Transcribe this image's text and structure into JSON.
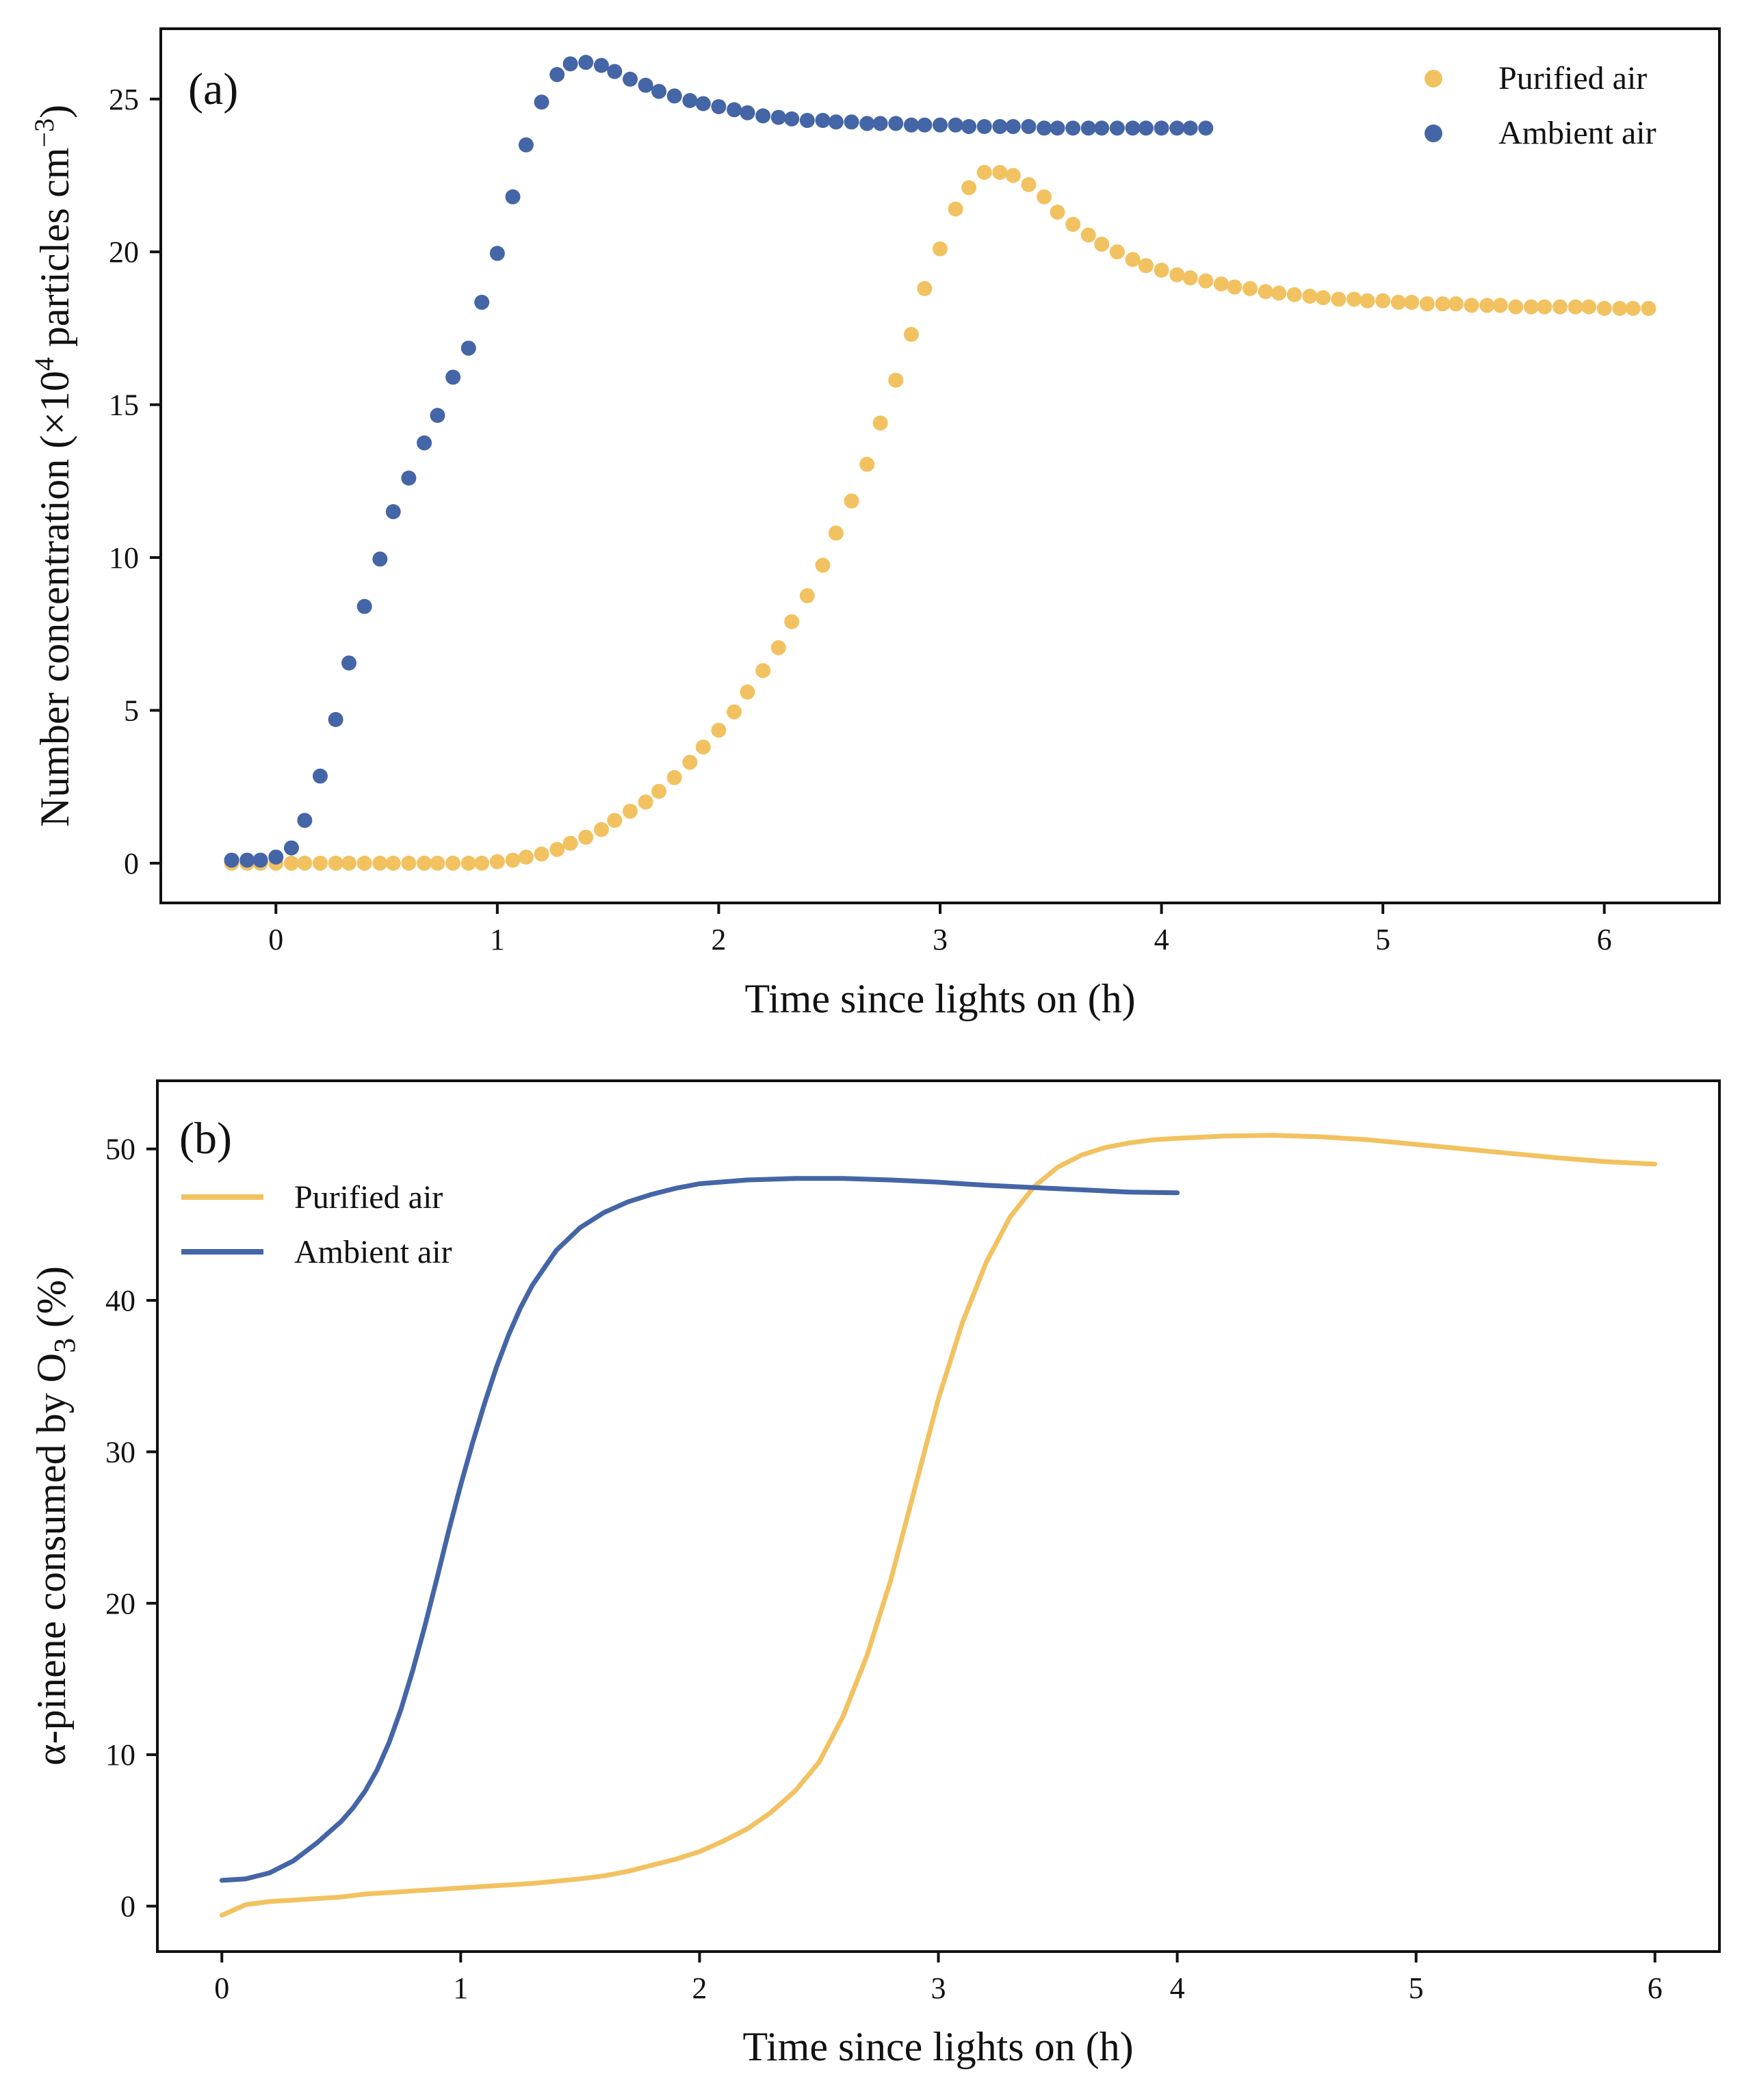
{
  "colors": {
    "purified": "#F2C261",
    "ambient": "#4465A6",
    "axis": "#111111"
  },
  "chart_data": [
    {
      "id": "a",
      "type": "scatter",
      "panel_label": "(a)",
      "xlabel": "Time since lights on (h)",
      "ylabel_parts": {
        "pre": "Number concentration (×10",
        "sup1": "4",
        "mid": " particles cm",
        "sup2": "−3",
        "post": ")"
      },
      "xlim": [
        -0.52,
        6.52
      ],
      "ylim": [
        -1.3,
        27.3
      ],
      "xticks": [
        0,
        1,
        2,
        3,
        4,
        5,
        6
      ],
      "xtick_labels": [
        "0",
        "1",
        "2",
        "3",
        "4",
        "5",
        "6"
      ],
      "yticks": [
        0,
        5,
        10,
        15,
        20,
        25
      ],
      "ytick_labels": [
        "0",
        "5",
        "10",
        "15",
        "20",
        "25"
      ],
      "legend": {
        "position": "top-right",
        "entries": [
          "Purified air",
          "Ambient air"
        ]
      },
      "series": [
        {
          "name": "Purified air",
          "color_key": "purified",
          "x": [
            -0.2,
            -0.13,
            -0.07,
            0.0,
            0.07,
            0.13,
            0.2,
            0.27,
            0.33,
            0.4,
            0.47,
            0.53,
            0.6,
            0.67,
            0.73,
            0.8,
            0.87,
            0.93,
            1.0,
            1.07,
            1.13,
            1.2,
            1.27,
            1.33,
            1.4,
            1.47,
            1.53,
            1.6,
            1.67,
            1.73,
            1.8,
            1.87,
            1.93,
            2.0,
            2.07,
            2.13,
            2.2,
            2.27,
            2.33,
            2.4,
            2.47,
            2.53,
            2.6,
            2.67,
            2.73,
            2.8,
            2.87,
            2.93,
            3.0,
            3.07,
            3.13,
            3.2,
            3.27,
            3.33,
            3.4,
            3.47,
            3.53,
            3.6,
            3.67,
            3.73,
            3.8,
            3.87,
            3.93,
            4.0,
            4.07,
            4.13,
            4.2,
            4.27,
            4.33,
            4.4,
            4.47,
            4.53,
            4.6,
            4.67,
            4.73,
            4.8,
            4.87,
            4.93,
            5.0,
            5.07,
            5.13,
            5.2,
            5.27,
            5.33,
            5.4,
            5.47,
            5.53,
            5.6,
            5.67,
            5.73,
            5.8,
            5.87,
            5.93,
            6.0,
            6.07,
            6.13,
            6.2
          ],
          "y": [
            0.0,
            0.0,
            0.0,
            0.0,
            0.0,
            0.0,
            0.0,
            0.0,
            0.0,
            0.0,
            0.0,
            0.0,
            0.0,
            0.0,
            0.0,
            0.0,
            0.0,
            0.0,
            0.05,
            0.1,
            0.2,
            0.3,
            0.45,
            0.65,
            0.85,
            1.1,
            1.4,
            1.7,
            2.0,
            2.35,
            2.8,
            3.3,
            3.8,
            4.35,
            4.95,
            5.6,
            6.3,
            7.05,
            7.9,
            8.75,
            9.75,
            10.8,
            11.85,
            13.05,
            14.4,
            15.8,
            17.3,
            18.8,
            20.1,
            21.4,
            22.1,
            22.6,
            22.6,
            22.5,
            22.2,
            21.8,
            21.3,
            20.9,
            20.55,
            20.25,
            20.0,
            19.75,
            19.55,
            19.4,
            19.25,
            19.15,
            19.05,
            18.95,
            18.85,
            18.8,
            18.7,
            18.65,
            18.6,
            18.55,
            18.5,
            18.45,
            18.45,
            18.4,
            18.4,
            18.35,
            18.35,
            18.3,
            18.3,
            18.3,
            18.25,
            18.25,
            18.25,
            18.2,
            18.2,
            18.2,
            18.2,
            18.2,
            18.2,
            18.15,
            18.15,
            18.15,
            18.15
          ]
        },
        {
          "name": "Ambient air",
          "color_key": "ambient",
          "x": [
            -0.2,
            -0.13,
            -0.07,
            0.0,
            0.07,
            0.13,
            0.2,
            0.27,
            0.33,
            0.4,
            0.47,
            0.53,
            0.6,
            0.67,
            0.73,
            0.8,
            0.87,
            0.93,
            1.0,
            1.07,
            1.13,
            1.2,
            1.27,
            1.33,
            1.4,
            1.47,
            1.53,
            1.6,
            1.67,
            1.73,
            1.8,
            1.87,
            1.93,
            2.0,
            2.07,
            2.13,
            2.2,
            2.27,
            2.33,
            2.4,
            2.47,
            2.53,
            2.6,
            2.67,
            2.73,
            2.8,
            2.87,
            2.93,
            3.0,
            3.07,
            3.13,
            3.2,
            3.27,
            3.33,
            3.4,
            3.47,
            3.53,
            3.6,
            3.67,
            3.73,
            3.8,
            3.87,
            3.93,
            4.0,
            4.07,
            4.13,
            4.2
          ],
          "y": [
            0.1,
            0.1,
            0.1,
            0.2,
            0.5,
            1.4,
            2.85,
            4.7,
            6.55,
            8.4,
            9.95,
            11.5,
            12.6,
            13.75,
            14.65,
            15.9,
            16.85,
            18.35,
            19.95,
            21.8,
            23.5,
            24.9,
            25.8,
            26.15,
            26.2,
            26.1,
            25.9,
            25.65,
            25.45,
            25.25,
            25.1,
            24.95,
            24.85,
            24.75,
            24.65,
            24.55,
            24.45,
            24.4,
            24.35,
            24.3,
            24.3,
            24.25,
            24.25,
            24.2,
            24.2,
            24.2,
            24.15,
            24.15,
            24.15,
            24.15,
            24.1,
            24.1,
            24.1,
            24.1,
            24.1,
            24.05,
            24.05,
            24.05,
            24.05,
            24.05,
            24.05,
            24.05,
            24.05,
            24.05,
            24.05,
            24.05,
            24.05
          ]
        }
      ]
    },
    {
      "id": "b",
      "type": "line",
      "panel_label": "(b)",
      "xlabel": "Time since lights on (h)",
      "ylabel_parts": {
        "pre": "α-pinene consumed by O",
        "sub": "3",
        "post": " (%)"
      },
      "xlim": [
        -0.27,
        6.27
      ],
      "ylim": [
        -3.0,
        54.5
      ],
      "xticks": [
        0,
        1,
        2,
        3,
        4,
        5,
        6
      ],
      "xtick_labels": [
        "0",
        "1",
        "2",
        "3",
        "4",
        "5",
        "6"
      ],
      "yticks": [
        0,
        10,
        20,
        30,
        40,
        50
      ],
      "ytick_labels": [
        "0",
        "10",
        "20",
        "30",
        "40",
        "50"
      ],
      "legend": {
        "position": "upper-left",
        "entries": [
          "Purified air",
          "Ambient air"
        ]
      },
      "series": [
        {
          "name": "Purified air",
          "color_key": "purified",
          "x": [
            0.0,
            0.1,
            0.2,
            0.3,
            0.4,
            0.5,
            0.6,
            0.7,
            0.8,
            0.9,
            1.0,
            1.1,
            1.2,
            1.3,
            1.4,
            1.5,
            1.6,
            1.7,
            1.8,
            1.9,
            2.0,
            2.1,
            2.2,
            2.3,
            2.4,
            2.5,
            2.6,
            2.7,
            2.8,
            2.9,
            3.0,
            3.1,
            3.2,
            3.3,
            3.4,
            3.5,
            3.6,
            3.7,
            3.8,
            3.9,
            4.0,
            4.2,
            4.4,
            4.6,
            4.8,
            5.0,
            5.2,
            5.4,
            5.6,
            5.8,
            6.0
          ],
          "y": [
            -0.6,
            0.1,
            0.3,
            0.4,
            0.5,
            0.6,
            0.8,
            0.9,
            1.0,
            1.1,
            1.2,
            1.3,
            1.4,
            1.5,
            1.65,
            1.8,
            2.0,
            2.3,
            2.7,
            3.1,
            3.6,
            4.3,
            5.1,
            6.2,
            7.6,
            9.5,
            12.5,
            16.5,
            21.5,
            27.5,
            33.5,
            38.5,
            42.5,
            45.5,
            47.5,
            48.8,
            49.6,
            50.1,
            50.4,
            50.6,
            50.7,
            50.85,
            50.9,
            50.8,
            50.6,
            50.3,
            50.0,
            49.7,
            49.4,
            49.15,
            49.0
          ]
        },
        {
          "name": "Ambient air",
          "color_key": "ambient",
          "x": [
            0.0,
            0.1,
            0.2,
            0.3,
            0.4,
            0.5,
            0.55,
            0.6,
            0.65,
            0.7,
            0.75,
            0.8,
            0.85,
            0.9,
            0.95,
            1.0,
            1.05,
            1.1,
            1.15,
            1.2,
            1.25,
            1.3,
            1.4,
            1.5,
            1.6,
            1.7,
            1.8,
            1.9,
            2.0,
            2.2,
            2.4,
            2.6,
            2.8,
            3.0,
            3.2,
            3.4,
            3.6,
            3.8,
            4.0
          ],
          "y": [
            1.7,
            1.8,
            2.2,
            3.0,
            4.2,
            5.6,
            6.5,
            7.6,
            9.0,
            10.8,
            13.0,
            15.6,
            18.5,
            21.6,
            24.8,
            27.8,
            30.6,
            33.2,
            35.6,
            37.7,
            39.5,
            41.0,
            43.3,
            44.8,
            45.8,
            46.5,
            47.0,
            47.4,
            47.7,
            47.95,
            48.05,
            48.05,
            47.95,
            47.8,
            47.6,
            47.45,
            47.3,
            47.15,
            47.1
          ]
        }
      ]
    }
  ]
}
